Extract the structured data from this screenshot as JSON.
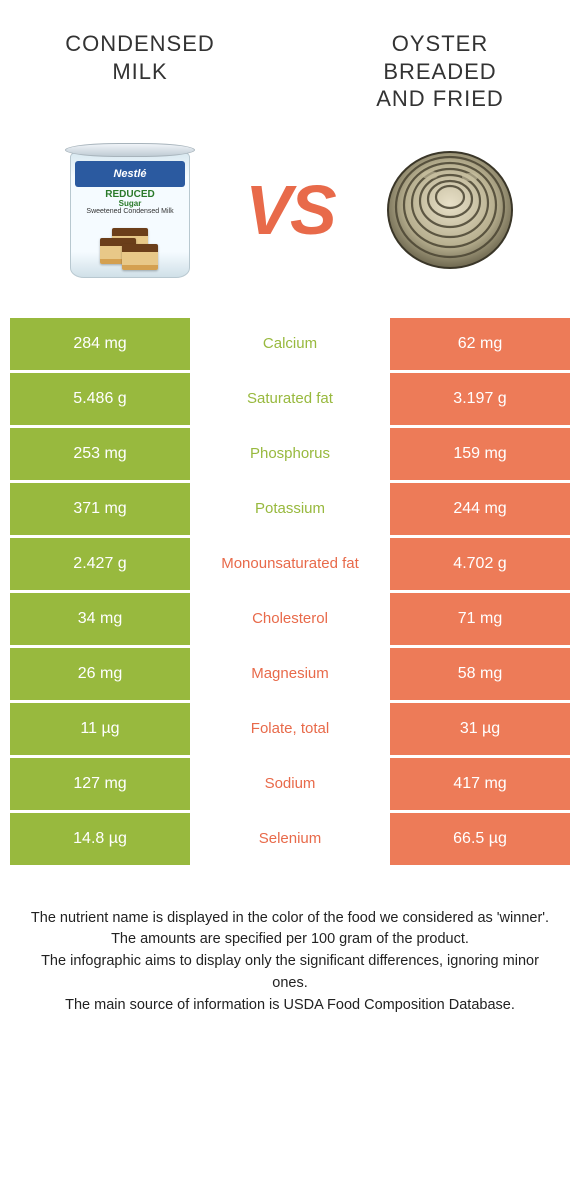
{
  "colors": {
    "left": "#98b93e",
    "right": "#ed7b58",
    "left_text": "#98b93e",
    "right_text": "#e86a4a",
    "bg": "#ffffff"
  },
  "header": {
    "left_title_line1": "Condensed",
    "left_title_line2": "milk",
    "right_title_line1": "Oyster",
    "right_title_line2": "breaded",
    "right_title_line3": "and fried",
    "vs": "VS"
  },
  "can": {
    "brand": "Nestlé",
    "reduced": "REDUCED",
    "sugar": "Sugar",
    "sub": "Sweetened Condensed Milk"
  },
  "rows": [
    {
      "left": "284 mg",
      "name": "Calcium",
      "right": "62 mg",
      "winner": "left"
    },
    {
      "left": "5.486 g",
      "name": "Saturated fat",
      "right": "3.197 g",
      "winner": "left"
    },
    {
      "left": "253 mg",
      "name": "Phosphorus",
      "right": "159 mg",
      "winner": "left"
    },
    {
      "left": "371 mg",
      "name": "Potassium",
      "right": "244 mg",
      "winner": "left"
    },
    {
      "left": "2.427 g",
      "name": "Monounsaturated fat",
      "right": "4.702 g",
      "winner": "right"
    },
    {
      "left": "34 mg",
      "name": "Cholesterol",
      "right": "71 mg",
      "winner": "right"
    },
    {
      "left": "26 mg",
      "name": "Magnesium",
      "right": "58 mg",
      "winner": "right"
    },
    {
      "left": "11 µg",
      "name": "Folate, total",
      "right": "31 µg",
      "winner": "right"
    },
    {
      "left": "127 mg",
      "name": "Sodium",
      "right": "417 mg",
      "winner": "right"
    },
    {
      "left": "14.8 µg",
      "name": "Selenium",
      "right": "66.5 µg",
      "winner": "right"
    }
  ],
  "footer": {
    "line1": "The nutrient name is displayed in the color of the food we considered as 'winner'.",
    "line2": "The amounts are specified per 100 gram of the product.",
    "line3": "The infographic aims to display only the significant differences, ignoring minor ones.",
    "line4": "The main source of information is USDA Food Composition Database."
  }
}
